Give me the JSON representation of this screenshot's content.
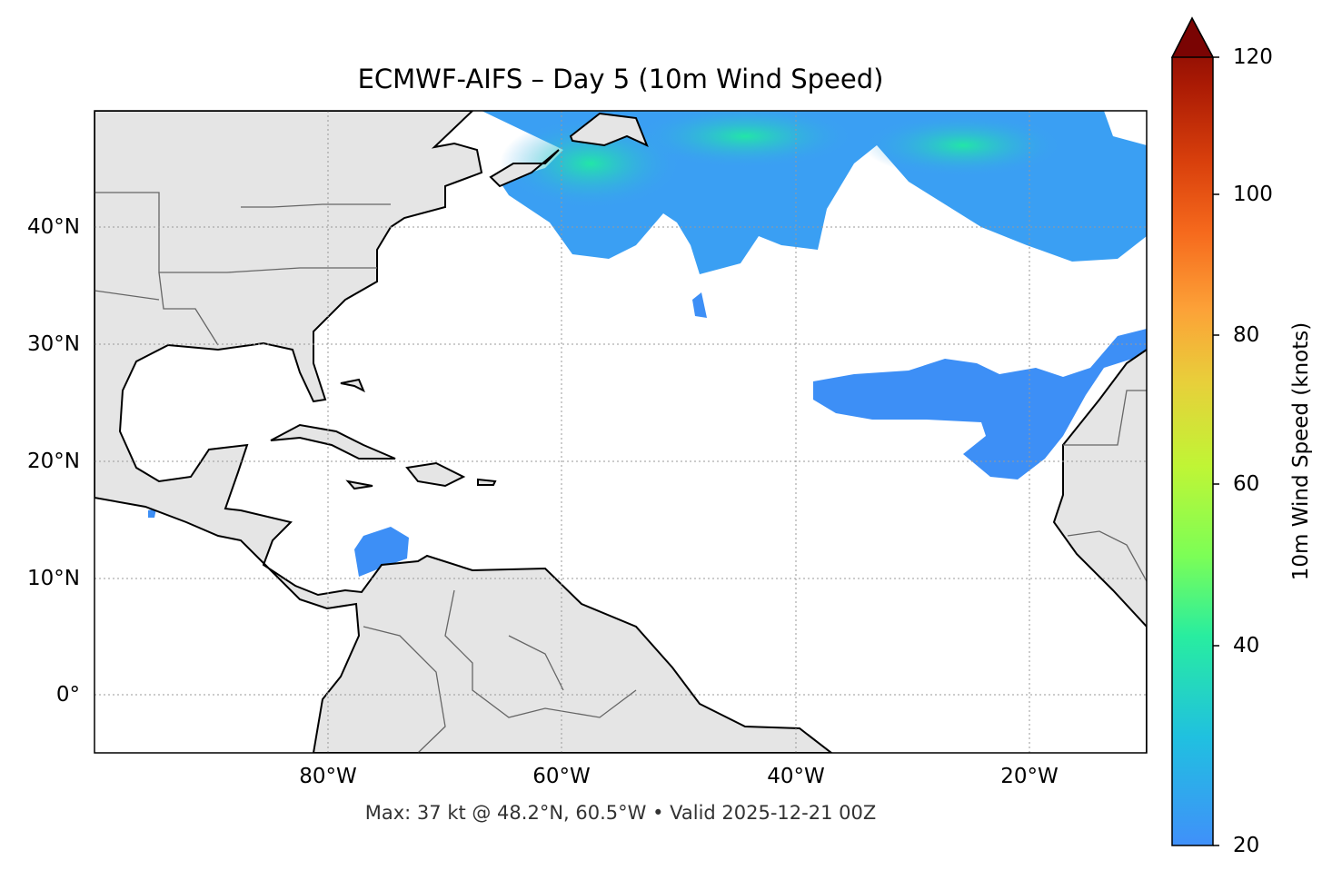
{
  "title": "ECMWF-AIFS – Day 5 (10m Wind Speed)",
  "footer": "Max: 37 kt @ 48.2°N, 60.5°W • Valid 2025-12-21 00Z",
  "map": {
    "extent": {
      "lon": [
        -100,
        -10
      ],
      "lat": [
        -5,
        50
      ]
    },
    "x_ticks": [
      "80°W",
      "60°W",
      "40°W",
      "20°W"
    ],
    "y_ticks": [
      "40°N",
      "30°N",
      "20°N",
      "10°N",
      "0°"
    ],
    "gridlines": true,
    "land_color": "#e5e5e5",
    "coastline_color": "#000000",
    "border_color": "#666666"
  },
  "colorbar": {
    "label": "10m Wind Speed (knots)",
    "ticks": [
      "20",
      "40",
      "60",
      "80",
      "100",
      "120"
    ],
    "range": [
      20,
      120
    ],
    "extend": "max",
    "colormap": [
      "#4090fa",
      "#20c0e0",
      "#28eda0",
      "#7cfe56",
      "#c0f535",
      "#e8cf3a",
      "#fca238",
      "#f66a1d",
      "#d9400c",
      "#aa1a04",
      "#7a0403"
    ]
  },
  "max_wind": {
    "value_kt": 37,
    "lat": 48.2,
    "lon": -60.5
  }
}
